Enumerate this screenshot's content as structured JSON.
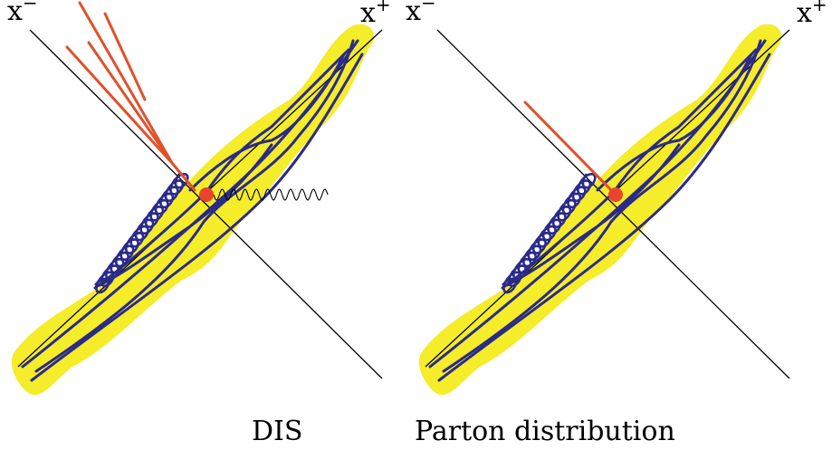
{
  "labels": {
    "left_xminus": "x",
    "left_xminus_sup": "−",
    "left_xplus": "x",
    "left_xplus_sup": "+",
    "right_xminus": "x",
    "right_xminus_sup": "−",
    "right_xplus": "x",
    "right_xplus_sup": "+"
  },
  "captions": {
    "left": "DIS",
    "right": "Parton distribution"
  },
  "colors": {
    "blob": "#f5ec2a",
    "parton": "#2a2a8a",
    "quark": "#e2502a",
    "vertex": "#e8452c"
  }
}
